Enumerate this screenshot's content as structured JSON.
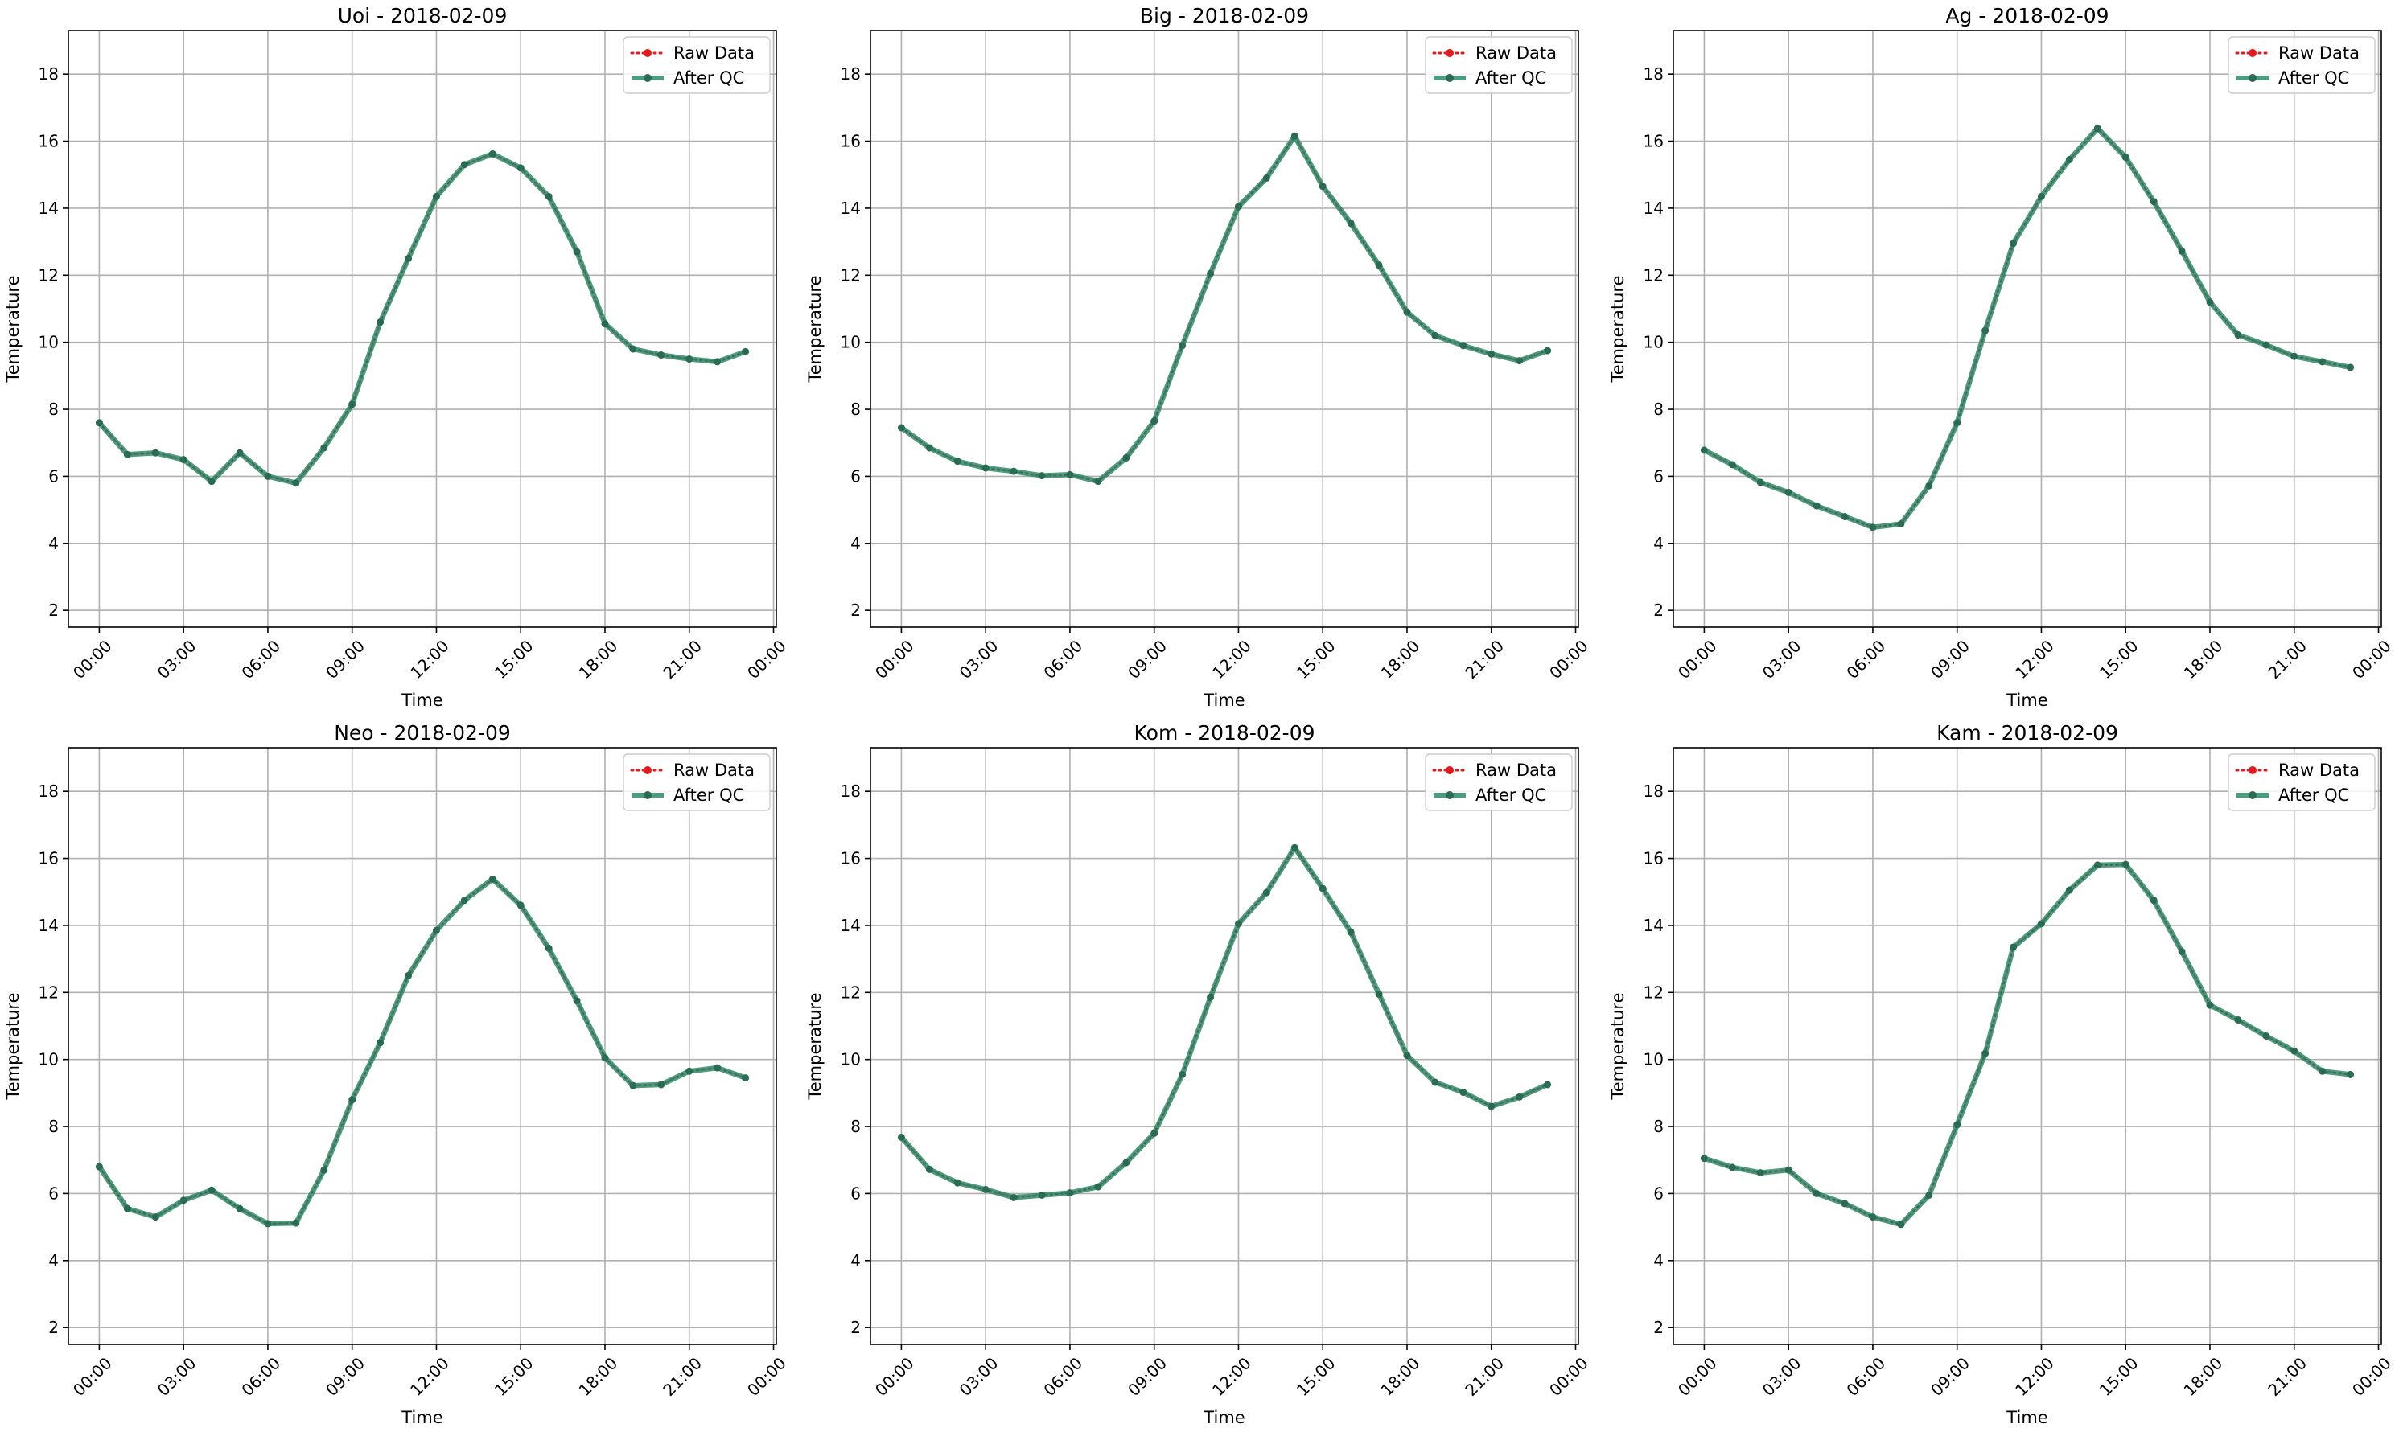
{
  "colors": {
    "raw": "#e41a1c",
    "qc": "#2e8b68",
    "grid": "#b0b0b0",
    "axes": "#000000",
    "legend_border": "#cccccc"
  },
  "chart_data": [
    {
      "type": "line",
      "title": "Uoi - 2018-02-09",
      "xlabel": "Time",
      "ylabel": "Temperature",
      "xlim_hours": [
        -1.1,
        24.1
      ],
      "ylim": [
        1.5,
        19.3
      ],
      "x_ticks": [
        "00:00",
        "03:00",
        "06:00",
        "09:00",
        "12:00",
        "15:00",
        "18:00",
        "21:00",
        "00:00"
      ],
      "y_ticks": [
        2,
        4,
        6,
        8,
        10,
        12,
        14,
        16,
        18
      ],
      "grid": true,
      "legend_position": "top-right",
      "x_hours": [
        0,
        1,
        2,
        3,
        4,
        5,
        6,
        7,
        8,
        9,
        10,
        11,
        12,
        13,
        14,
        15,
        16,
        17,
        18,
        19,
        20,
        21,
        22,
        23
      ],
      "series": [
        {
          "name": "Raw Data",
          "style": "dotted-marker",
          "values": [
            7.6,
            6.65,
            6.7,
            6.5,
            5.85,
            6.7,
            6.0,
            5.8,
            6.85,
            8.15,
            10.6,
            12.5,
            14.35,
            15.3,
            15.62,
            15.2,
            14.35,
            12.7,
            10.55,
            9.8,
            9.62,
            9.5,
            9.42,
            9.72
          ]
        },
        {
          "name": "After QC",
          "style": "solid-marker",
          "values": [
            7.6,
            6.65,
            6.7,
            6.5,
            5.85,
            6.7,
            6.0,
            5.8,
            6.85,
            8.15,
            10.6,
            12.5,
            14.35,
            15.3,
            15.62,
            15.2,
            14.35,
            12.7,
            10.55,
            9.8,
            9.62,
            9.5,
            9.42,
            9.72
          ]
        }
      ]
    },
    {
      "type": "line",
      "title": "Big - 2018-02-09",
      "xlabel": "Time",
      "ylabel": "Temperature",
      "xlim_hours": [
        -1.1,
        24.1
      ],
      "ylim": [
        1.5,
        19.3
      ],
      "x_ticks": [
        "00:00",
        "03:00",
        "06:00",
        "09:00",
        "12:00",
        "15:00",
        "18:00",
        "21:00",
        "00:00"
      ],
      "y_ticks": [
        2,
        4,
        6,
        8,
        10,
        12,
        14,
        16,
        18
      ],
      "grid": true,
      "legend_position": "top-right",
      "x_hours": [
        0,
        1,
        2,
        3,
        4,
        5,
        6,
        7,
        8,
        9,
        10,
        11,
        12,
        13,
        14,
        15,
        16,
        17,
        18,
        19,
        20,
        21,
        22,
        23
      ],
      "series": [
        {
          "name": "Raw Data",
          "style": "dotted-marker",
          "values": [
            7.45,
            6.85,
            6.45,
            6.25,
            6.15,
            6.02,
            6.05,
            5.85,
            6.55,
            7.65,
            9.9,
            12.05,
            14.05,
            14.9,
            16.15,
            14.65,
            13.55,
            12.3,
            10.9,
            10.2,
            9.9,
            9.65,
            9.45,
            9.75
          ]
        },
        {
          "name": "After QC",
          "style": "solid-marker",
          "values": [
            7.45,
            6.85,
            6.45,
            6.25,
            6.15,
            6.02,
            6.05,
            5.85,
            6.55,
            7.65,
            9.9,
            12.05,
            14.05,
            14.9,
            16.15,
            14.65,
            13.55,
            12.3,
            10.9,
            10.2,
            9.9,
            9.65,
            9.45,
            9.75
          ]
        }
      ]
    },
    {
      "type": "line",
      "title": "Ag - 2018-02-09",
      "xlabel": "Time",
      "ylabel": "Temperature",
      "xlim_hours": [
        -1.1,
        24.1
      ],
      "ylim": [
        1.5,
        19.3
      ],
      "x_ticks": [
        "00:00",
        "03:00",
        "06:00",
        "09:00",
        "12:00",
        "15:00",
        "18:00",
        "21:00",
        "00:00"
      ],
      "y_ticks": [
        2,
        4,
        6,
        8,
        10,
        12,
        14,
        16,
        18
      ],
      "grid": true,
      "legend_position": "top-right",
      "x_hours": [
        0,
        1,
        2,
        3,
        4,
        5,
        6,
        7,
        8,
        9,
        10,
        11,
        12,
        13,
        14,
        15,
        16,
        17,
        18,
        19,
        20,
        21,
        22,
        23
      ],
      "series": [
        {
          "name": "Raw Data",
          "style": "dotted-marker",
          "values": [
            6.78,
            6.35,
            5.82,
            5.52,
            5.12,
            4.8,
            4.48,
            4.58,
            5.72,
            7.6,
            10.35,
            12.95,
            14.35,
            15.45,
            16.38,
            15.52,
            14.2,
            12.72,
            11.2,
            10.22,
            9.92,
            9.58,
            9.42,
            9.25
          ]
        },
        {
          "name": "After QC",
          "style": "solid-marker",
          "values": [
            6.78,
            6.35,
            5.82,
            5.52,
            5.12,
            4.8,
            4.48,
            4.58,
            5.72,
            7.6,
            10.35,
            12.95,
            14.35,
            15.45,
            16.38,
            15.52,
            14.2,
            12.72,
            11.2,
            10.22,
            9.92,
            9.58,
            9.42,
            9.25
          ]
        }
      ]
    },
    {
      "type": "line",
      "title": "Neo - 2018-02-09",
      "xlabel": "Time",
      "ylabel": "Temperature",
      "xlim_hours": [
        -1.1,
        24.1
      ],
      "ylim": [
        1.5,
        19.3
      ],
      "x_ticks": [
        "00:00",
        "03:00",
        "06:00",
        "09:00",
        "12:00",
        "15:00",
        "18:00",
        "21:00",
        "00:00"
      ],
      "y_ticks": [
        2,
        4,
        6,
        8,
        10,
        12,
        14,
        16,
        18
      ],
      "grid": true,
      "legend_position": "top-right",
      "x_hours": [
        0,
        1,
        2,
        3,
        4,
        5,
        6,
        7,
        8,
        9,
        10,
        11,
        12,
        13,
        14,
        15,
        16,
        17,
        18,
        19,
        20,
        21,
        22,
        23
      ],
      "series": [
        {
          "name": "Raw Data",
          "style": "dotted-marker",
          "values": [
            6.8,
            5.55,
            5.3,
            5.8,
            6.1,
            5.55,
            5.1,
            5.12,
            6.7,
            8.8,
            10.5,
            12.5,
            13.85,
            14.75,
            15.38,
            14.6,
            13.32,
            11.75,
            10.05,
            9.22,
            9.25,
            9.65,
            9.75,
            9.45
          ]
        },
        {
          "name": "After QC",
          "style": "solid-marker",
          "values": [
            6.8,
            5.55,
            5.3,
            5.8,
            6.1,
            5.55,
            5.1,
            5.12,
            6.7,
            8.8,
            10.5,
            12.5,
            13.85,
            14.75,
            15.38,
            14.6,
            13.32,
            11.75,
            10.05,
            9.22,
            9.25,
            9.65,
            9.75,
            9.45
          ]
        }
      ]
    },
    {
      "type": "line",
      "title": "Kom - 2018-02-09",
      "xlabel": "Time",
      "ylabel": "Temperature",
      "xlim_hours": [
        -1.1,
        24.1
      ],
      "ylim": [
        1.5,
        19.3
      ],
      "x_ticks": [
        "00:00",
        "03:00",
        "06:00",
        "09:00",
        "12:00",
        "15:00",
        "18:00",
        "21:00",
        "00:00"
      ],
      "y_ticks": [
        2,
        4,
        6,
        8,
        10,
        12,
        14,
        16,
        18
      ],
      "grid": true,
      "legend_position": "top-right",
      "x_hours": [
        0,
        1,
        2,
        3,
        4,
        5,
        6,
        7,
        8,
        9,
        10,
        11,
        12,
        13,
        14,
        15,
        16,
        17,
        18,
        19,
        20,
        21,
        22,
        23
      ],
      "series": [
        {
          "name": "Raw Data",
          "style": "dotted-marker",
          "values": [
            7.68,
            6.72,
            6.32,
            6.12,
            5.88,
            5.95,
            6.02,
            6.2,
            6.92,
            7.8,
            9.55,
            11.85,
            14.05,
            14.98,
            16.32,
            15.1,
            13.8,
            11.95,
            10.12,
            9.32,
            9.02,
            8.6,
            8.88,
            9.25
          ]
        },
        {
          "name": "After QC",
          "style": "solid-marker",
          "values": [
            7.68,
            6.72,
            6.32,
            6.12,
            5.88,
            5.95,
            6.02,
            6.2,
            6.92,
            7.8,
            9.55,
            11.85,
            14.05,
            14.98,
            16.32,
            15.1,
            13.8,
            11.95,
            10.12,
            9.32,
            9.02,
            8.6,
            8.88,
            9.25
          ]
        }
      ]
    },
    {
      "type": "line",
      "title": "Kam - 2018-02-09",
      "xlabel": "Time",
      "ylabel": "Temperature",
      "xlim_hours": [
        -1.1,
        24.1
      ],
      "ylim": [
        1.5,
        19.3
      ],
      "x_ticks": [
        "00:00",
        "03:00",
        "06:00",
        "09:00",
        "12:00",
        "15:00",
        "18:00",
        "21:00",
        "00:00"
      ],
      "y_ticks": [
        2,
        4,
        6,
        8,
        10,
        12,
        14,
        16,
        18
      ],
      "grid": true,
      "legend_position": "top-right",
      "x_hours": [
        0,
        1,
        2,
        3,
        4,
        5,
        6,
        7,
        8,
        9,
        10,
        11,
        12,
        13,
        14,
        15,
        16,
        17,
        18,
        19,
        20,
        21,
        22,
        23
      ],
      "series": [
        {
          "name": "Raw Data",
          "style": "dotted-marker",
          "values": [
            7.05,
            6.78,
            6.62,
            6.7,
            6.0,
            5.7,
            5.3,
            5.08,
            5.95,
            8.05,
            10.18,
            13.35,
            14.05,
            15.05,
            15.8,
            15.82,
            14.75,
            13.22,
            11.62,
            11.18,
            10.7,
            10.25,
            9.65,
            9.55
          ]
        },
        {
          "name": "After QC",
          "style": "solid-marker",
          "values": [
            7.05,
            6.78,
            6.62,
            6.7,
            6.0,
            5.7,
            5.3,
            5.08,
            5.95,
            8.05,
            10.18,
            13.35,
            14.05,
            15.05,
            15.8,
            15.82,
            14.75,
            13.22,
            11.62,
            11.18,
            10.7,
            10.25,
            9.65,
            9.55
          ]
        }
      ]
    }
  ]
}
